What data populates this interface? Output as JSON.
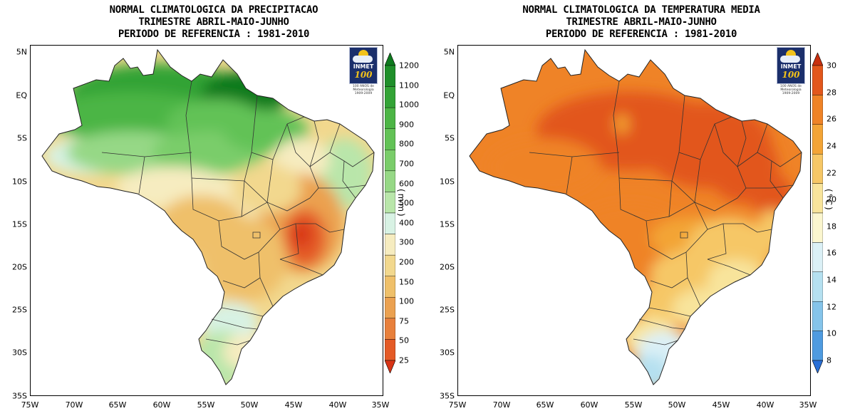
{
  "precip": {
    "title1": "NORMAL CLIMATOLOGICA DA PRECIPITACAO",
    "title2": "TRIMESTRE ABRIL-MAIO-JUNHO",
    "title3": "PERIODO DE REFERENCIA : 1981-2010",
    "unit": "(mm)",
    "colorbar": [
      "1200",
      "1100",
      "1000",
      "900",
      "800",
      "700",
      "600",
      "500",
      "400",
      "300",
      "200",
      "150",
      "100",
      "75",
      "50",
      "25"
    ],
    "colors": [
      "#0e7a1e",
      "#1f8f2a",
      "#33a336",
      "#4cb545",
      "#62c256",
      "#7acd6a",
      "#96d886",
      "#b9e6aa",
      "#d8f2e4",
      "#f6ecc0",
      "#f2d88e",
      "#efc06a",
      "#eba150",
      "#e8803c",
      "#e45a26",
      "#d83416"
    ]
  },
  "temp": {
    "title1": "NORMAL CLIMATOLOGICA DA TEMPERATURA MEDIA",
    "title2": "TRIMESTRE ABRIL-MAIO-JUNHO",
    "title3": "PERIODO DE REFERENCIA : 1981-2010",
    "unit": "(°C)",
    "colorbar": [
      "30",
      "28",
      "26",
      "24",
      "22",
      "20",
      "18",
      "16",
      "14",
      "12",
      "10",
      "8"
    ],
    "colors": [
      "#c8300f",
      "#e2571c",
      "#ef8327",
      "#f3a436",
      "#f6c766",
      "#f8e49b",
      "#fbf6cf",
      "#dbf0f6",
      "#b5e0f0",
      "#85c4ea",
      "#4f9be0",
      "#2a6fd6"
    ]
  },
  "axes": {
    "lat_labels": [
      "5N",
      "EQ",
      "5S",
      "10S",
      "15S",
      "20S",
      "25S",
      "30S",
      "35S"
    ],
    "lon_labels": [
      "75W",
      "70W",
      "65W",
      "60W",
      "55W",
      "50W",
      "45W",
      "40W",
      "35W"
    ]
  },
  "logo": {
    "name": "INMET",
    "number": "100",
    "caption1": "100 ANOS de",
    "caption2": "Meteorologia",
    "caption3": "1909-2009"
  }
}
